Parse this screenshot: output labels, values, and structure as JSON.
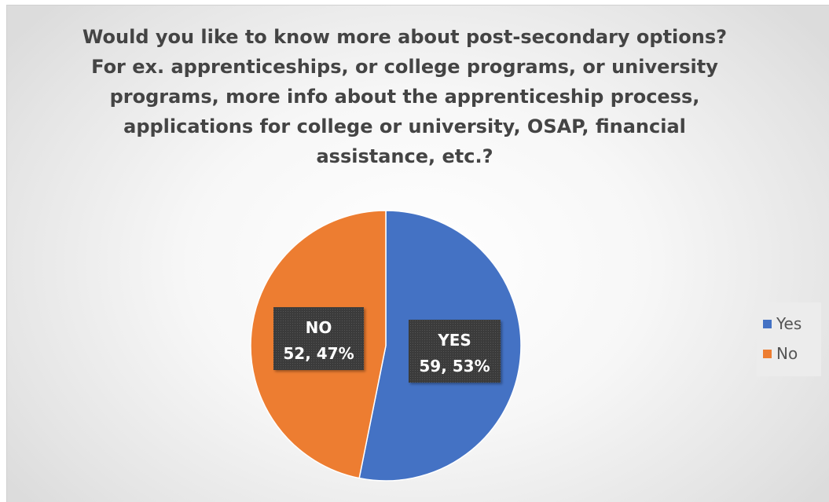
{
  "chart_data": {
    "type": "pie",
    "title_lines": [
      "Would you like to know more about post-secondary options?",
      "For ex. apprenticeships, or college programs, or university",
      "programs, more info about the apprenticeship process,",
      "applications for college or university, OSAP, financial",
      "assistance, etc.?"
    ],
    "slices": [
      {
        "name": "Yes",
        "value": 59,
        "percent": 53,
        "color": "#4472C4",
        "label_title": "YES",
        "label_value": "59, 53%"
      },
      {
        "name": "No",
        "value": 52,
        "percent": 47,
        "color": "#ED7D31",
        "label_title": "NO",
        "label_value": "52, 47%"
      }
    ],
    "legend": {
      "placement": "right",
      "entries": [
        "Yes",
        "No"
      ]
    }
  }
}
